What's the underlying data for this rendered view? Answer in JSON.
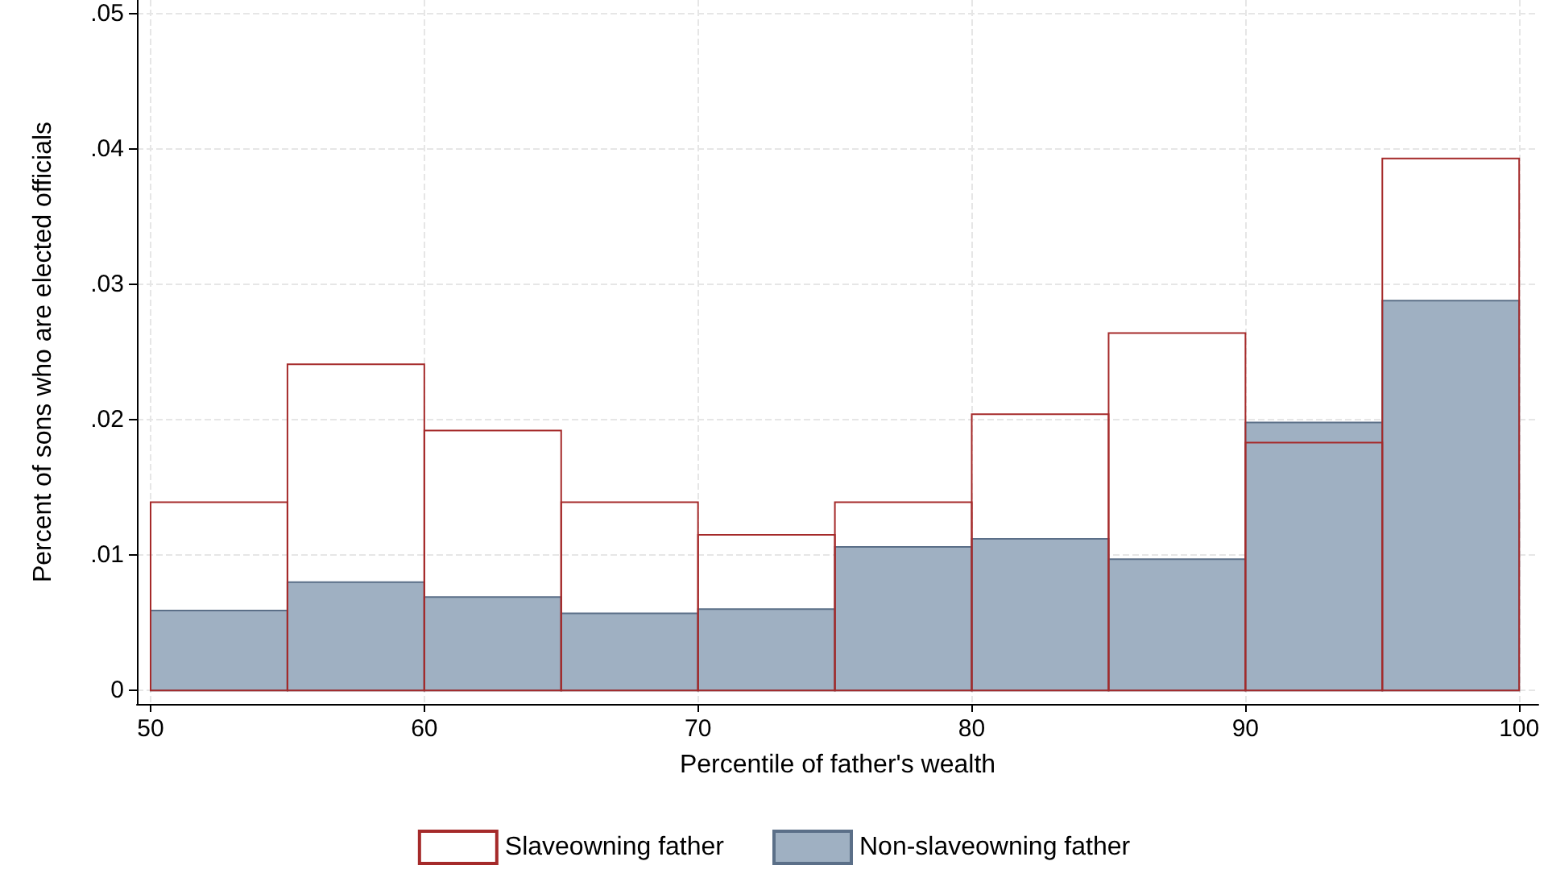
{
  "chart_data": {
    "type": "histogram",
    "xlabel": "Percentile of father's wealth",
    "ylabel": "Percent of sons who are elected officials",
    "bins": [
      50,
      55,
      60,
      65,
      70,
      75,
      80,
      85,
      90,
      95,
      100
    ],
    "series": [
      {
        "name": "Slaveowning father",
        "color": "#a52a2a",
        "values": [
          0.0139,
          0.0241,
          0.0192,
          0.0139,
          0.0115,
          0.0139,
          0.0204,
          0.0264,
          0.0183,
          0.0393
        ]
      },
      {
        "name": "Non-slaveowning father",
        "color": "#9fb0c2",
        "values": [
          0.0059,
          0.008,
          0.0069,
          0.0057,
          0.006,
          0.0106,
          0.0112,
          0.0097,
          0.0198,
          0.0288
        ]
      }
    ],
    "xlim": [
      49.5,
      100.7
    ],
    "xticks": [
      50,
      60,
      70,
      80,
      90,
      100
    ],
    "ylim": [
      -0.001,
      0.051
    ],
    "yticks": [
      {
        "value": 0,
        "label": "0"
      },
      {
        "value": 0.01,
        "label": ".01"
      },
      {
        "value": 0.02,
        "label": ".02"
      },
      {
        "value": 0.03,
        "label": ".03"
      },
      {
        "value": 0.04,
        "label": ".04"
      },
      {
        "value": 0.05,
        "label": ".05"
      }
    ],
    "grid": true,
    "legend": "bottom"
  }
}
